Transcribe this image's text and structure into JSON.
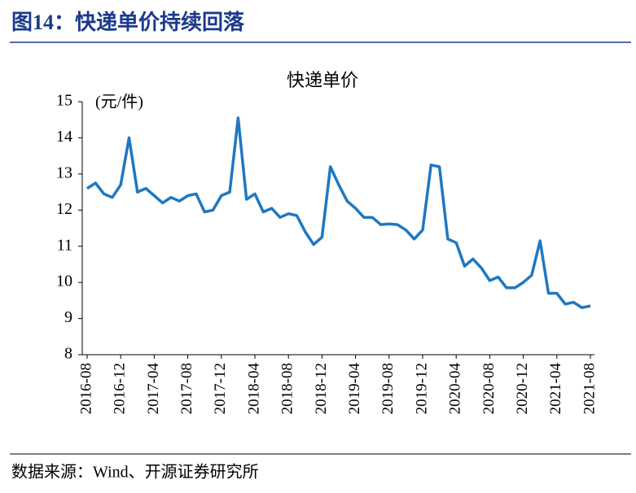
{
  "header": {
    "title": "图14：快递单价持续回落"
  },
  "chart_data": {
    "type": "line",
    "title": "快递单价",
    "y_label": "(元/件)",
    "categories": [
      "2016-08",
      null,
      null,
      null,
      "2016-12",
      null,
      null,
      null,
      "2017-04",
      null,
      null,
      null,
      "2017-08",
      null,
      null,
      null,
      "2017-12",
      null,
      null,
      null,
      "2018-04",
      null,
      null,
      null,
      "2018-08",
      null,
      null,
      null,
      "2018-12",
      null,
      null,
      null,
      "2019-04",
      null,
      null,
      null,
      "2019-08",
      null,
      null,
      null,
      "2019-12",
      null,
      null,
      null,
      "2020-04",
      null,
      null,
      null,
      "2020-08",
      null,
      null,
      null,
      "2020-12",
      null,
      null,
      null,
      "2021-04",
      null,
      null,
      null,
      "2021-08"
    ],
    "series": [
      {
        "name": "快递单价",
        "color": "#1f78c1",
        "values": [
          12.6,
          12.75,
          12.45,
          12.35,
          12.7,
          14.0,
          12.5,
          12.6,
          12.4,
          12.2,
          12.35,
          12.25,
          12.4,
          12.45,
          11.95,
          12.0,
          12.4,
          12.5,
          14.55,
          12.3,
          12.45,
          11.95,
          12.05,
          11.8,
          11.9,
          11.85,
          11.4,
          11.05,
          11.25,
          13.2,
          12.7,
          12.25,
          12.05,
          11.8,
          11.8,
          11.6,
          11.62,
          11.6,
          11.45,
          11.2,
          11.45,
          13.25,
          13.2,
          11.2,
          11.1,
          10.45,
          10.65,
          10.4,
          10.05,
          10.15,
          9.85,
          9.85,
          10.0,
          10.2,
          11.15,
          9.7,
          9.7,
          9.4,
          9.45,
          9.3,
          9.35
        ]
      }
    ],
    "ylim": [
      8,
      15
    ],
    "yticks": [
      8,
      9,
      10,
      11,
      12,
      13,
      14,
      15
    ],
    "grid": false
  },
  "footer": {
    "source": "数据来源：Wind、开源证券研究所"
  }
}
